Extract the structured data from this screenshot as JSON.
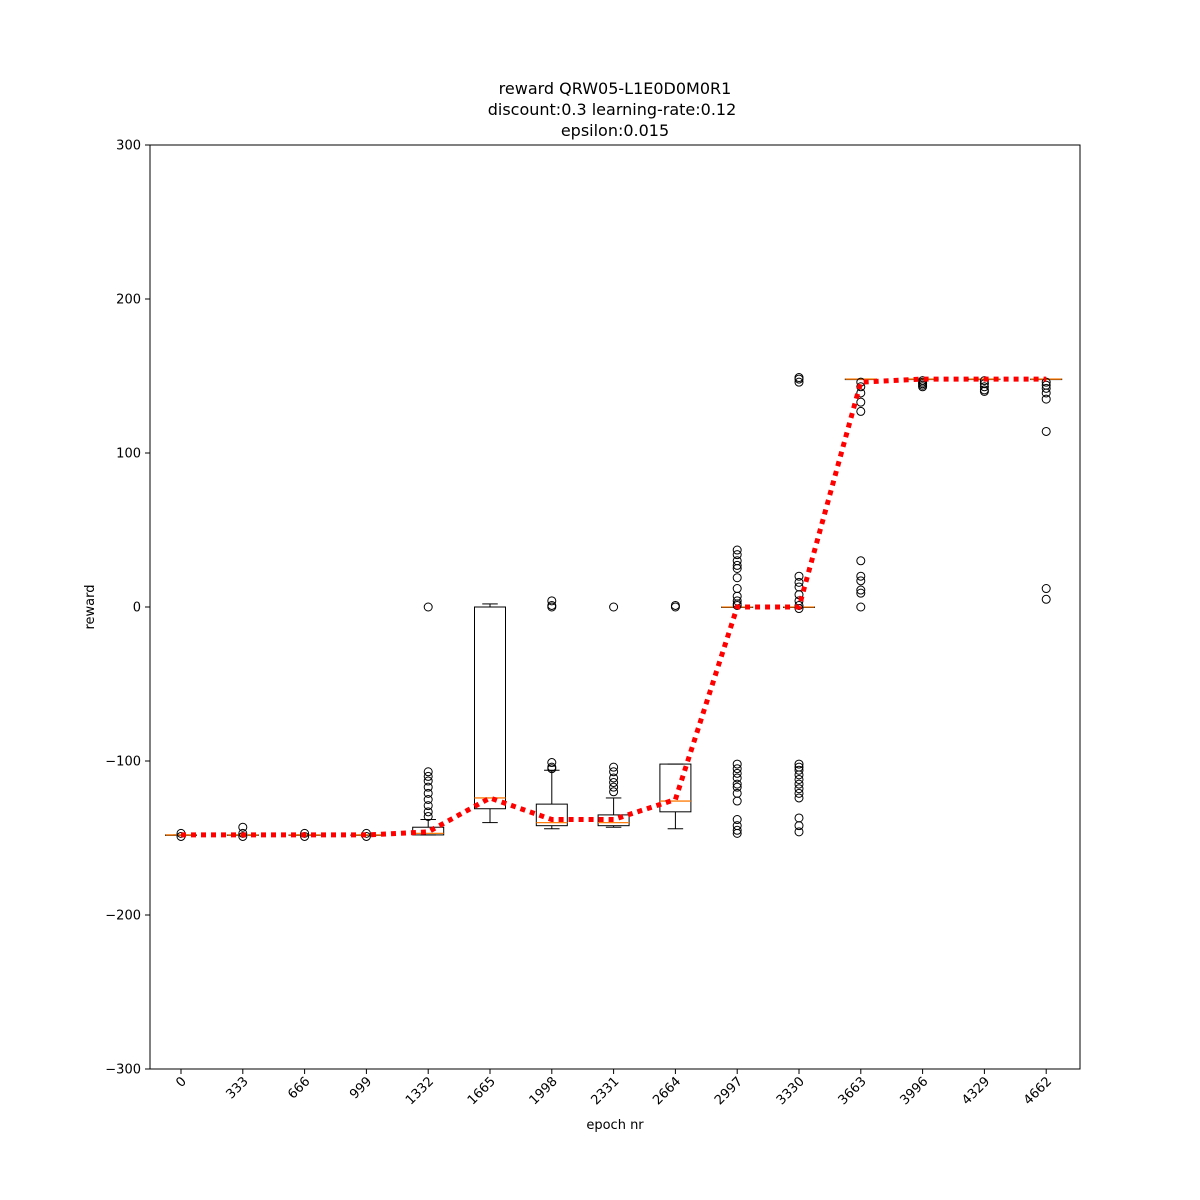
{
  "chart_data": {
    "type": "box",
    "title_lines": [
      "reward QRW05-L1E0D0M0R1",
      "discount:0.3 learning-rate:0.12",
      "epsilon:0.015"
    ],
    "xlabel": "epoch nr",
    "ylabel": "reward",
    "ylim": [
      -300,
      300
    ],
    "yticks": [
      -300,
      -200,
      -100,
      0,
      100,
      200,
      300
    ],
    "ytick_labels": [
      "−300",
      "−200",
      "−100",
      "0",
      "100",
      "200",
      "300"
    ],
    "categories": [
      "0",
      "333",
      "666",
      "999",
      "1332",
      "1665",
      "1998",
      "2331",
      "2664",
      "2997",
      "3330",
      "3663",
      "3996",
      "4329",
      "4662"
    ],
    "boxes": [
      {
        "q1": -148,
        "median": -148,
        "q3": -148,
        "whislo": -148,
        "whishi": -148,
        "fliers": [
          -147,
          -149
        ]
      },
      {
        "q1": -148,
        "median": -148,
        "q3": -148,
        "whislo": -148,
        "whishi": -148,
        "fliers": [
          -143,
          -147,
          -149
        ]
      },
      {
        "q1": -148,
        "median": -148,
        "q3": -148,
        "whislo": -148,
        "whishi": -148,
        "fliers": [
          -147,
          -149
        ]
      },
      {
        "q1": -148,
        "median": -148,
        "q3": -148,
        "whislo": -148,
        "whishi": -148,
        "fliers": [
          -147,
          -149
        ]
      },
      {
        "q1": -148,
        "median": -147,
        "q3": -143,
        "whislo": -148,
        "whishi": -138,
        "fliers": [
          0,
          -107,
          -110,
          -113,
          -117,
          -121,
          -125,
          -129,
          -133,
          -136
        ]
      },
      {
        "q1": -131,
        "median": -124,
        "q3": 0,
        "whislo": -140,
        "whishi": 2,
        "fliers": []
      },
      {
        "q1": -142,
        "median": -140,
        "q3": -128,
        "whislo": -144,
        "whishi": -106,
        "fliers": [
          4,
          1,
          0,
          -101,
          -104,
          -105
        ]
      },
      {
        "q1": -142,
        "median": -140,
        "q3": -135,
        "whislo": -143,
        "whishi": -124,
        "fliers": [
          0,
          -104,
          -107,
          -111,
          -114,
          -117,
          -120
        ]
      },
      {
        "q1": -133,
        "median": -126,
        "q3": -102,
        "whislo": -144,
        "whishi": -102,
        "fliers": [
          0,
          1
        ]
      },
      {
        "q1": 0,
        "median": 0,
        "q3": 0,
        "whislo": 0,
        "whishi": 0,
        "fliers": [
          37,
          34,
          30,
          27,
          25,
          19,
          12,
          7,
          4,
          2,
          1,
          -102,
          -105,
          -108,
          -111,
          -115,
          -117,
          -121,
          -126,
          -138,
          -142,
          -145,
          -147
        ]
      },
      {
        "q1": 0,
        "median": 0,
        "q3": 0,
        "whislo": 0,
        "whishi": 0,
        "fliers": [
          149,
          148,
          146,
          20,
          16,
          13,
          8,
          4,
          1,
          -1,
          -102,
          -104,
          -106,
          -109,
          -112,
          -115,
          -118,
          -121,
          -124,
          -137,
          -142,
          -146
        ]
      },
      {
        "q1": 148,
        "median": 148,
        "q3": 148,
        "whislo": 148,
        "whishi": 148,
        "fliers": [
          146,
          143,
          139,
          133,
          127,
          30,
          20,
          17,
          11,
          9,
          0
        ]
      },
      {
        "q1": 148,
        "median": 148,
        "q3": 148,
        "whislo": 148,
        "whishi": 148,
        "fliers": [
          147,
          146,
          145,
          144,
          143
        ]
      },
      {
        "q1": 148,
        "median": 148,
        "q3": 148,
        "whislo": 148,
        "whishi": 148,
        "fliers": [
          147,
          145,
          143,
          141,
          140
        ]
      },
      {
        "q1": 148,
        "median": 148,
        "q3": 148,
        "whislo": 148,
        "whishi": 148,
        "fliers": [
          146,
          144,
          142,
          139,
          135,
          114,
          12,
          5
        ]
      }
    ],
    "mean_line": {
      "color": "#ff0000",
      "style": "dotted",
      "values": [
        -148,
        -148,
        -148,
        -148,
        -146,
        -124,
        -138,
        -138,
        -125,
        0,
        0,
        146,
        148,
        148,
        148
      ]
    },
    "colors": {
      "box": "#000000",
      "median": "#ff7f0e",
      "mean_line": "#ff0000",
      "flier": "#000000"
    },
    "grid": false
  }
}
